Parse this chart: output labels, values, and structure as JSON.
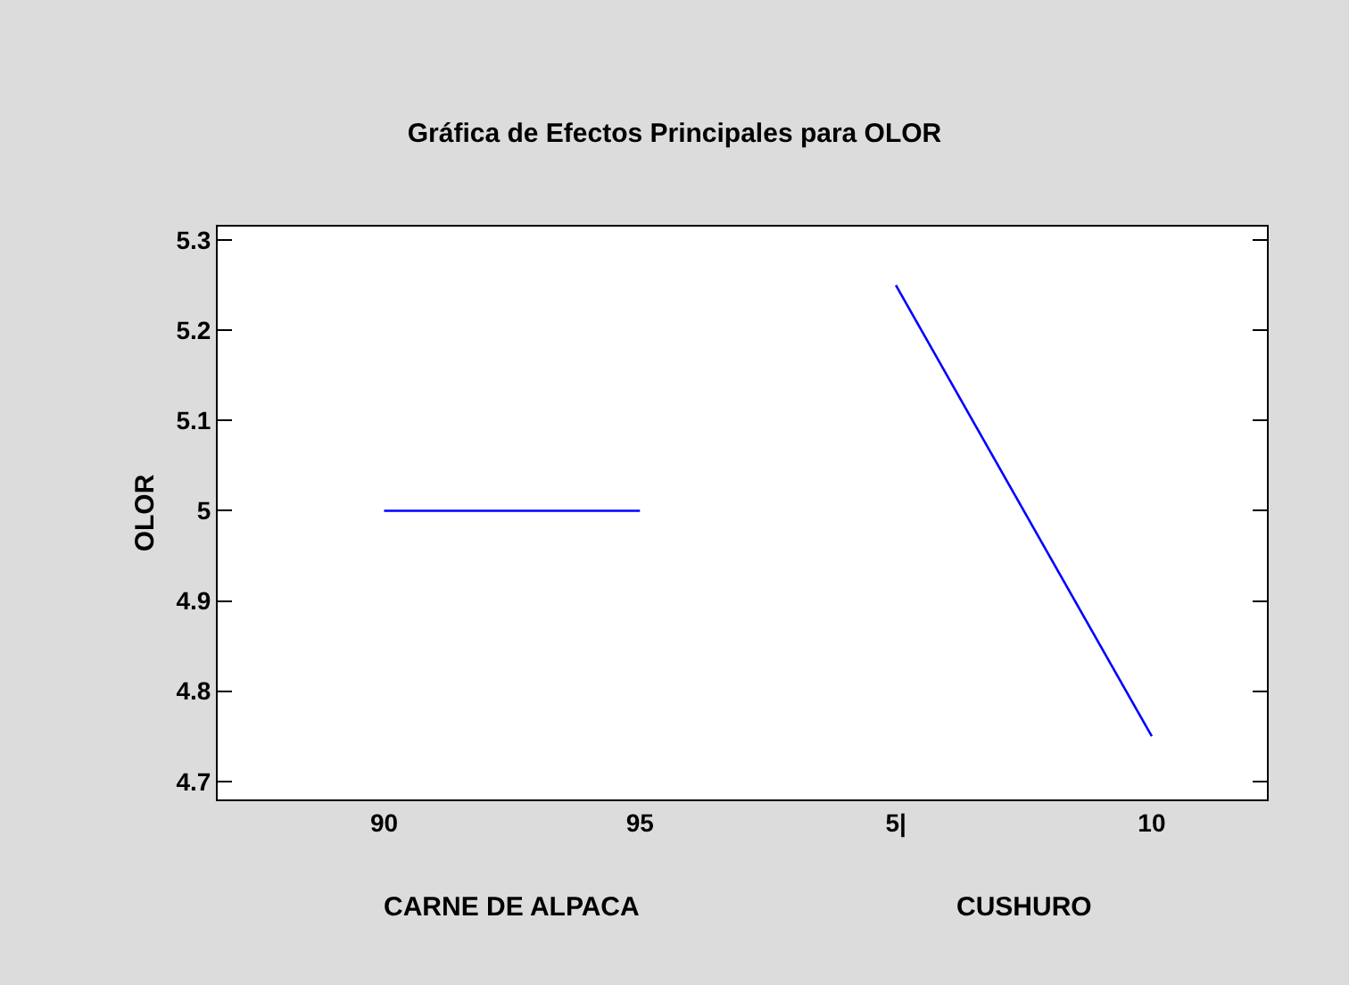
{
  "chart_data": {
    "type": "line",
    "title": "Gráfica de Efectos Principales para OLOR",
    "ylabel": "OLOR",
    "categories": [
      "90",
      "95",
      "5|",
      "10"
    ],
    "series": [
      {
        "color": "#0000ff",
        "values": [
          5.0,
          5.0,
          null,
          null
        ]
      },
      {
        "color": "#0000ff",
        "values": [
          null,
          null,
          5.25,
          4.75
        ]
      }
    ],
    "annotations": [
      "CARNE DE ALPACA",
      "CUSHURO"
    ],
    "ylim": [
      4.68,
      5.315
    ],
    "yticks": [
      4.7,
      4.8,
      4.9,
      5,
      5.1,
      5.2,
      5.3
    ],
    "marker": "none",
    "line_style": "solid"
  }
}
